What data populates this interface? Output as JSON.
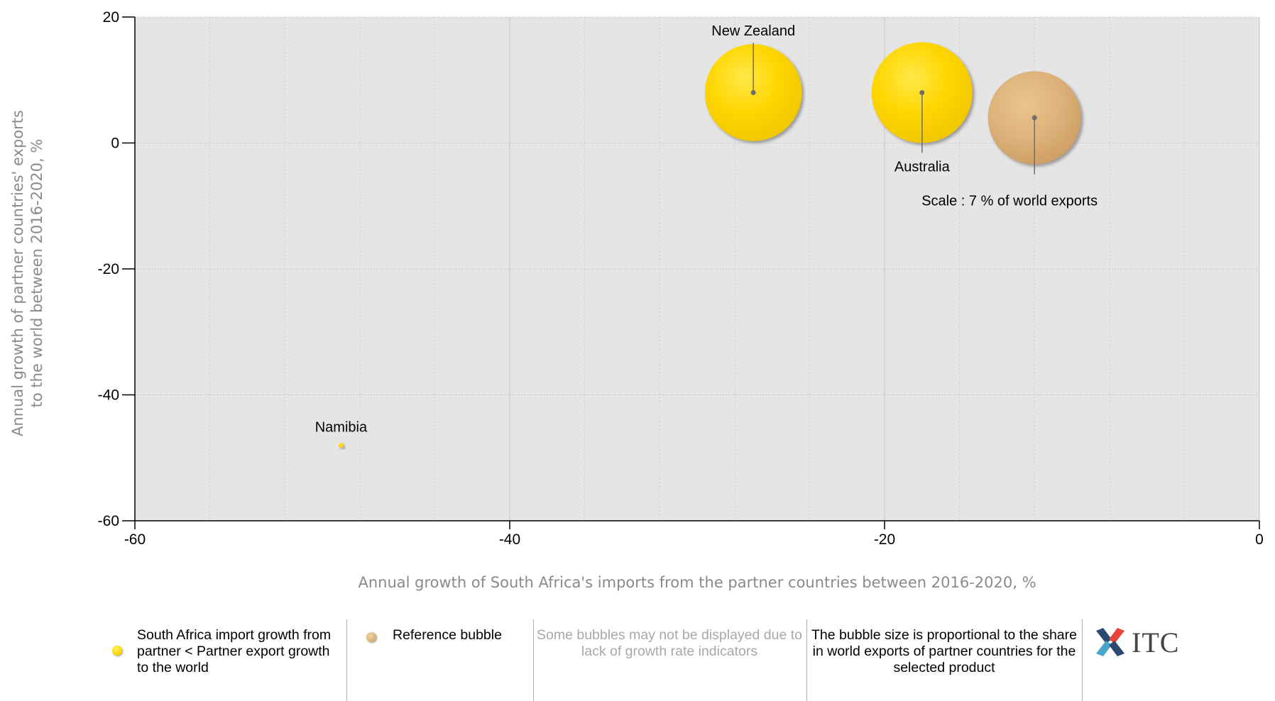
{
  "chart_data": {
    "type": "scatter",
    "xlabel": "Annual growth of South Africa's imports from the partner countries between 2016-2020, %",
    "ylabel": "Annual growth of partner countries' exports to the world between 2016-2020, %",
    "xlim": [
      -60,
      0
    ],
    "ylim": [
      -60,
      20
    ],
    "x_ticks": [
      -60,
      -40,
      -20,
      0
    ],
    "y_ticks": [
      20,
      0,
      -20,
      -40,
      -60
    ],
    "x_minor_step": 4,
    "grid": true,
    "points": [
      {
        "label": "New Zealand",
        "x": -27,
        "y": 8,
        "color": "#ffd600",
        "label_pos": "above"
      },
      {
        "label": "Australia",
        "x": -18,
        "y": 8,
        "color": "#ffd600",
        "label_pos": "below"
      },
      {
        "label": "Scale : 7 % of world exports",
        "x": -12,
        "y": 4,
        "color": "#ddb27a",
        "label_pos": "below",
        "reference": true
      },
      {
        "label": "Namibia",
        "x": -49,
        "y": -48,
        "color": "#ffd600",
        "label_pos": "above"
      }
    ],
    "bubble_size_share": [
      7.6,
      8.2,
      7,
      0.02
    ]
  },
  "legend": {
    "item1": "South Africa import growth from partner < Partner export growth to the world",
    "item1_color": "#ffd600",
    "item2": "Reference bubble",
    "item2_color": "#ddb27a",
    "note1": "Some bubbles may not be displayed due to lack of growth rate indicators",
    "note2": "The bubble size is proportional to the share in world exports of partner countries for the selected product",
    "logo_text": "ITC"
  }
}
